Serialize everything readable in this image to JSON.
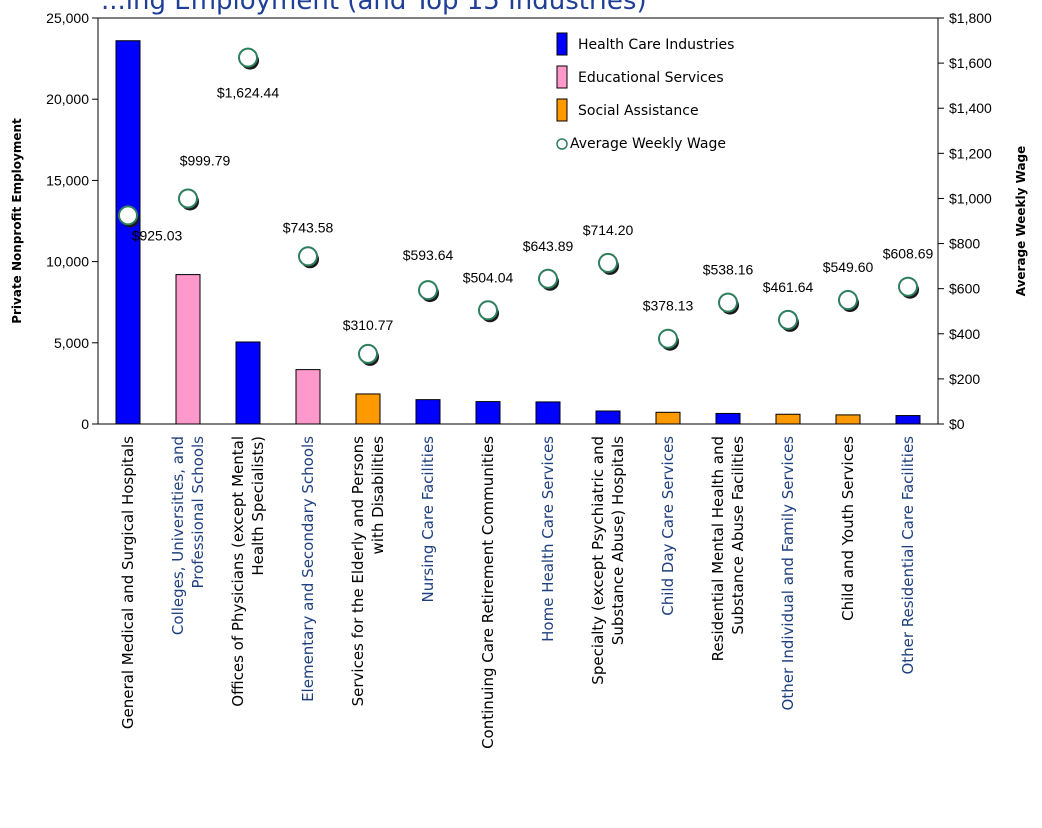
{
  "chart_data": {
    "type": "bar",
    "title_fragment": "...ing Employment (and Top 15 Industries)",
    "ylabel_left": "Private Nonprofit  Employment",
    "ylabel_right": "Average Weekly Wage",
    "ylim_left": [
      0,
      25000
    ],
    "ylim_right": [
      0,
      1800
    ],
    "left_ticks": [
      "0",
      "5,000",
      "10,000",
      "15,000",
      "20,000",
      "25,000"
    ],
    "right_ticks": [
      "$0",
      "$200",
      "$400",
      "$600",
      "$800",
      "$1,000",
      "$1,200",
      "$1,400",
      "$1,600",
      "$1,800"
    ],
    "legend": [
      {
        "label": "Health Care Industries",
        "color": "#0000ff",
        "kind": "bar"
      },
      {
        "label": "Educational Services",
        "color": "#ff99cc",
        "kind": "bar"
      },
      {
        "label": "Social Assistance",
        "color": "#ff9900",
        "kind": "bar"
      },
      {
        "label": "Average Weekly Wage",
        "color": "#2f7f5f",
        "kind": "marker"
      }
    ],
    "categories": [
      {
        "line1": "General Medical and Surgical Hospitals",
        "line2": "",
        "group": "Health Care Industries",
        "employment": 23600,
        "wage": 925.03,
        "wage_label": "$925.03",
        "label_color": "#000000"
      },
      {
        "line1": "Colleges, Universities, and",
        "line2": "Professional Schools",
        "group": "Educational Services",
        "employment": 9200,
        "wage": 999.79,
        "wage_label": "$999.79",
        "label_color": "#1f3f7f"
      },
      {
        "line1": "Offices of Physicians (except Mental",
        "line2": "Health Specialists)",
        "group": "Health Care Industries",
        "employment": 5050,
        "wage": 1624.44,
        "wage_label": "$1,624.44",
        "label_color": "#000000"
      },
      {
        "line1": "Elementary and Secondary Schools",
        "line2": "",
        "group": "Educational Services",
        "employment": 3350,
        "wage": 743.58,
        "wage_label": "$743.58",
        "label_color": "#1f3f7f"
      },
      {
        "line1": "Services for the Elderly and Persons",
        "line2": "with Disabilities",
        "group": "Social Assistance",
        "employment": 1850,
        "wage": 310.77,
        "wage_label": "$310.77",
        "label_color": "#000000"
      },
      {
        "line1": "Nursing Care Facilities",
        "line2": "",
        "group": "Health Care Industries",
        "employment": 1500,
        "wage": 593.64,
        "wage_label": "$593.64",
        "label_color": "#1f3f7f"
      },
      {
        "line1": "Continuing Care Retirement Communities",
        "line2": "",
        "group": "Health Care Industries",
        "employment": 1380,
        "wage": 504.04,
        "wage_label": "$504.04",
        "label_color": "#000000"
      },
      {
        "line1": "Home Health Care Services",
        "line2": "",
        "group": "Health Care Industries",
        "employment": 1360,
        "wage": 643.89,
        "wage_label": "$643.89",
        "label_color": "#1f3f7f"
      },
      {
        "line1": "Specialty (except Psychiatric and",
        "line2": "Substance Abuse) Hospitals",
        "group": "Health Care Industries",
        "employment": 800,
        "wage": 714.2,
        "wage_label": "$714.20",
        "label_color": "#000000"
      },
      {
        "line1": "Child Day Care Services",
        "line2": "",
        "group": "Social Assistance",
        "employment": 720,
        "wage": 378.13,
        "wage_label": "$378.13",
        "label_color": "#1f3f7f"
      },
      {
        "line1": "Residential Mental Health and",
        "line2": "Substance Abuse Facilities",
        "group": "Health Care Industries",
        "employment": 650,
        "wage": 538.16,
        "wage_label": "$538.16",
        "label_color": "#000000"
      },
      {
        "line1": "Other Individual and Family Services",
        "line2": "",
        "group": "Social Assistance",
        "employment": 600,
        "wage": 461.64,
        "wage_label": "$461.64",
        "label_color": "#1f3f7f"
      },
      {
        "line1": "Child and Youth Services",
        "line2": "",
        "group": "Social Assistance",
        "employment": 560,
        "wage": 549.6,
        "wage_label": "$549.60",
        "label_color": "#000000"
      },
      {
        "line1": "Other Residential Care Facilities",
        "line2": "",
        "group": "Health Care Industries",
        "employment": 520,
        "wage": 608.69,
        "wage_label": "$608.69",
        "label_color": "#1f3f7f"
      }
    ]
  }
}
